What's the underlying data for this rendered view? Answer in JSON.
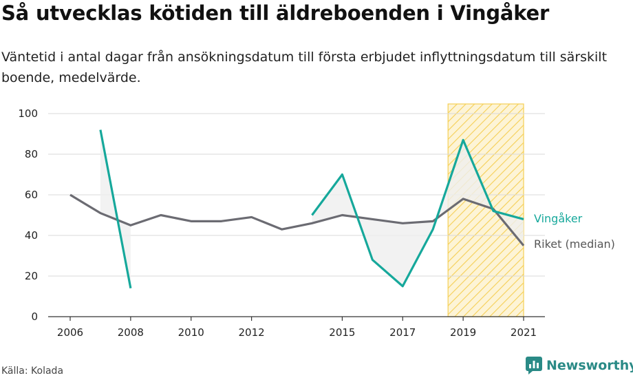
{
  "header": {
    "title": "Så utvecklas kötiden till äldreboenden i Vingåker",
    "subtitle": "Väntetid i antal dagar från ansökningsdatum till första erbjudet inflyttningsdatum till särskilt boende, medelvärde."
  },
  "footer": {
    "source": "Källa: Kolada",
    "brand": "Newsworthy"
  },
  "colors": {
    "vingaker": "#16a89b",
    "riket": "#6b6b72",
    "fill": "#efefef",
    "highlight": "#f5cf55"
  },
  "chart_data": {
    "type": "line",
    "title": "Så utvecklas kötiden till äldreboenden i Vingåker",
    "xlabel": "",
    "ylabel": "",
    "ylim": [
      0,
      100
    ],
    "xlim": [
      2006,
      2021
    ],
    "yticks": [
      0,
      20,
      40,
      60,
      80,
      100
    ],
    "xticks": [
      2006,
      2008,
      2010,
      2012,
      2015,
      2017,
      2019,
      2021
    ],
    "x": [
      2006,
      2007,
      2008,
      2009,
      2010,
      2011,
      2012,
      2013,
      2014,
      2015,
      2016,
      2017,
      2018,
      2019,
      2020,
      2021
    ],
    "series": [
      {
        "name": "Vingåker",
        "values": [
          null,
          92,
          14,
          null,
          null,
          null,
          null,
          null,
          50,
          70,
          28,
          15,
          43,
          87,
          52,
          48
        ]
      },
      {
        "name": "Riket (median)",
        "values": [
          60,
          51,
          45,
          50,
          47,
          47,
          49,
          43,
          46,
          50,
          48,
          46,
          47,
          58,
          53,
          35
        ]
      }
    ],
    "highlight_range": [
      2018.5,
      2021
    ],
    "grid": true
  }
}
